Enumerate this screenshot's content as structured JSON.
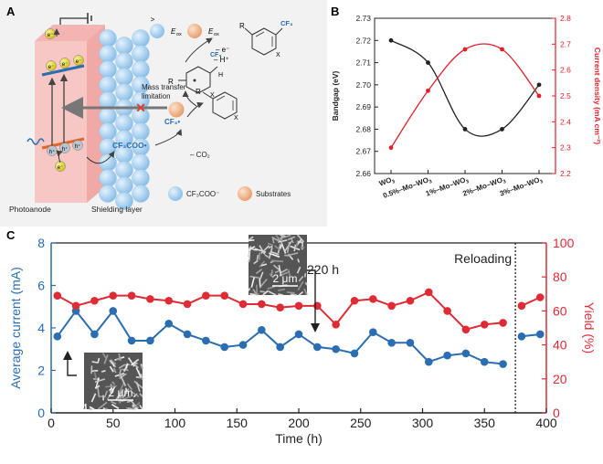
{
  "panels": {
    "a": {
      "label": "A",
      "e_label": "e⁻",
      "h_label": "h⁺",
      "eox_left": "E",
      "eox_sub": "ox",
      "eox_gt": ">",
      "eox_right": "E",
      "mass_transfer_1": "Mass transfer",
      "mass_transfer_2": "limitation",
      "minus_e": "– e⁻",
      "minus_h": "– H⁺",
      "cf3_top": "CF₃",
      "cf3_mid": "CF₃",
      "h_atom": "H",
      "r_upper": "R",
      "r_lower": "R",
      "x_upper": "X",
      "x_mid": "X",
      "x_lower": "X",
      "cf3_radical": "CF₃•",
      "cf3coo_radical": "CF₃COO•",
      "minus_co2": "– CO₂",
      "photoanode": "Photoanode",
      "shielding_layer": "Shielding layer",
      "legend_cf3coo": "CF₃COO⁻",
      "legend_substrates": "Substrates",
      "colors": {
        "bead": "#a9d2f1",
        "substrate": "#f2b98a",
        "anode": "#f7c7c5"
      }
    },
    "b": {
      "label": "B"
    },
    "c": {
      "label": "C",
      "reloading": "Reloading",
      "annot_220": "220 h",
      "scale_bar": "2 μm"
    }
  },
  "chart_data": [
    {
      "type": "line",
      "panel": "B",
      "categories": [
        "WO3",
        "0.5%-Mo-WO3",
        "1%-Mo-WO3",
        "2%-Mo-WO3",
        "3%-Mo-WO3"
      ],
      "category_labels": [
        {
          "main": "WO",
          "sub": "3",
          "pre": ""
        },
        {
          "main": "0.5%–Mo–WO",
          "sub": "3",
          "pre": ""
        },
        {
          "main": "1%–Mo–WO",
          "sub": "3",
          "pre": ""
        },
        {
          "main": "2%–Mo–WO",
          "sub": "3",
          "pre": ""
        },
        {
          "main": "3%–Mo–WO",
          "sub": "3",
          "pre": ""
        }
      ],
      "ylabel_left": "Bandgap (eV)",
      "ylabel_right": "Current density (mA cm⁻²)",
      "ylim_left": [
        2.66,
        2.73
      ],
      "ylim_right": [
        2.2,
        2.8
      ],
      "yticks_left": [
        "2.66",
        "2.67",
        "2.68",
        "2.69",
        "2.70",
        "2.71",
        "2.72",
        "2.73"
      ],
      "yticks_right": [
        "2.2",
        "2.3",
        "2.4",
        "2.5",
        "2.6",
        "2.7",
        "2.8"
      ],
      "series": [
        {
          "axis": "left",
          "color": "#222222",
          "values": [
            2.72,
            2.71,
            2.68,
            2.68,
            2.7
          ]
        },
        {
          "axis": "right",
          "color": "#e0202a",
          "values": [
            2.3,
            2.52,
            2.68,
            2.68,
            2.5
          ]
        }
      ],
      "grid": false
    },
    {
      "type": "line",
      "panel": "C",
      "xlabel": "Time (h)",
      "ylabel_left": "Average current (mA)",
      "ylabel_right": "Yield (%)",
      "xlim": [
        0,
        400
      ],
      "ylim_left": [
        0,
        8
      ],
      "ylim_right": [
        0,
        100
      ],
      "xticks": [
        "0",
        "50",
        "100",
        "150",
        "200",
        "250",
        "300",
        "350",
        "400"
      ],
      "yticks_left": [
        "0",
        "2",
        "4",
        "6",
        "8"
      ],
      "yticks_right": [
        "0",
        "20",
        "40",
        "60",
        "80",
        "100"
      ],
      "reload_at": 375,
      "series": [
        {
          "axis": "left",
          "color": "#2a6db0",
          "x": [
            5,
            20,
            35,
            50,
            65,
            80,
            95,
            110,
            125,
            140,
            155,
            170,
            185,
            200,
            215,
            230,
            245,
            260,
            275,
            290,
            305,
            320,
            335,
            350,
            365
          ],
          "y": [
            3.6,
            4.8,
            3.7,
            4.8,
            3.4,
            3.4,
            4.2,
            3.7,
            3.4,
            3.1,
            3.2,
            3.9,
            3.1,
            3.7,
            3.1,
            3.0,
            2.8,
            3.8,
            3.3,
            3.3,
            2.4,
            2.7,
            2.8,
            2.4,
            2.3
          ]
        },
        {
          "axis": "left",
          "color": "#2a6db0",
          "x": [
            380,
            395
          ],
          "y": [
            3.6,
            3.7
          ]
        },
        {
          "axis": "right",
          "color": "#de2b35",
          "x": [
            5,
            20,
            35,
            50,
            65,
            80,
            95,
            110,
            125,
            140,
            155,
            170,
            185,
            200,
            215,
            230,
            245,
            260,
            275,
            290,
            305,
            320,
            335,
            350,
            365
          ],
          "y": [
            69,
            63,
            66,
            69,
            69,
            67,
            66,
            64,
            69,
            69,
            64,
            64,
            62,
            63,
            63,
            52,
            66,
            67,
            63,
            66,
            71,
            60,
            49,
            52,
            53
          ]
        },
        {
          "axis": "right",
          "color": "#de2b35",
          "x": [
            380,
            395
          ],
          "y": [
            63,
            68
          ]
        }
      ],
      "grid": false
    }
  ]
}
